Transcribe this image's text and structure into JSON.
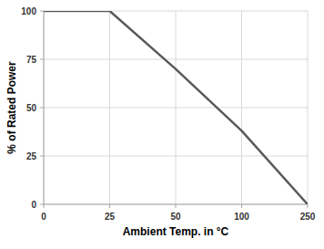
{
  "chart_data": {
    "type": "line",
    "xlabel": "Ambient Temp. in °C",
    "ylabel": "% of Rated Power",
    "categories": [
      "0",
      "25",
      "50",
      "100",
      "250"
    ],
    "values": [
      100,
      100,
      70,
      38,
      0
    ],
    "color": "#595959",
    "ylim": [
      0,
      100
    ],
    "yticks": [
      0,
      25,
      50,
      75,
      100
    ],
    "grid": true
  }
}
